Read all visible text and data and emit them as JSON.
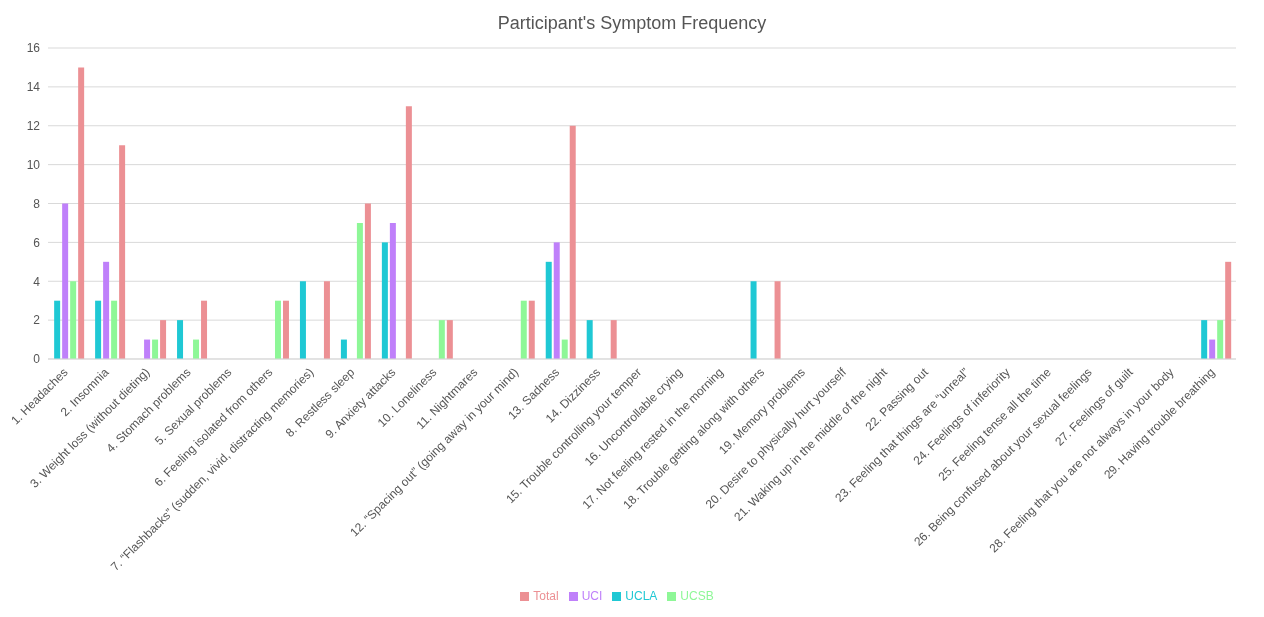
{
  "chart_data": {
    "type": "bar",
    "title": "Participant's Symptom Frequency",
    "categories": [
      "1. Headaches",
      "2. Insomnia",
      "3. Weight loss (without dieting)",
      "4. Stomach problems",
      "5. Sexual problems",
      "6. Feeling isolated from others",
      "7. “Flashbacks” (sudden, vivid, distracting memories)",
      "8. Restless sleep",
      "9. Anxiety attacks",
      "10. Loneliness",
      "11. Nightmares",
      "12. “Spacing out” (going away in your mind)",
      "13. Sadness",
      "14. Dizziness",
      "15. Trouble controlling your temper",
      "16. Uncontrollable crying",
      "17. Not feeling rested in the morning",
      "18. Trouble getting along with others",
      "19. Memory problems",
      "20. Desire to physically hurt yourself",
      "21. Waking up in the middle of the night",
      "22. Passing out",
      "23. Feeling that things are “unreal”",
      "24. Feelings of inferiority",
      "25. Feeling tense all the time",
      "26. Being confused about your sexual feelings",
      "27. Feelings of guilt",
      "28. Feeling that you are not always in your body",
      "29. Having trouble breathing"
    ],
    "series": [
      {
        "name": "UCLA",
        "color": "#1fc8d4",
        "values": [
          3,
          3,
          0,
          2,
          0,
          0,
          4,
          1,
          6,
          0,
          0,
          0,
          5,
          2,
          0,
          0,
          0,
          4,
          0,
          0,
          0,
          0,
          0,
          0,
          0,
          0,
          0,
          0,
          2
        ]
      },
      {
        "name": "UCI",
        "color": "#bf80fa",
        "values": [
          8,
          5,
          1,
          0,
          0,
          0,
          0,
          0,
          7,
          0,
          0,
          0,
          6,
          0,
          0,
          0,
          0,
          0,
          0,
          0,
          0,
          0,
          0,
          0,
          0,
          0,
          0,
          0,
          1
        ]
      },
      {
        "name": "UCSB",
        "color": "#8ef797",
        "values": [
          4,
          3,
          1,
          1,
          0,
          3,
          0,
          7,
          0,
          2,
          0,
          3,
          1,
          0,
          0,
          0,
          0,
          0,
          0,
          0,
          0,
          0,
          0,
          0,
          0,
          0,
          0,
          0,
          2
        ]
      },
      {
        "name": "Total",
        "color": "#ec9094",
        "values": [
          15,
          11,
          2,
          3,
          0,
          3,
          4,
          8,
          13,
          2,
          0,
          3,
          12,
          2,
          0,
          0,
          0,
          4,
          0,
          0,
          0,
          0,
          0,
          0,
          0,
          0,
          0,
          0,
          5
        ]
      }
    ],
    "ylim": [
      0,
      16
    ],
    "yticks": [
      0,
      2,
      4,
      6,
      8,
      10,
      12,
      14,
      16
    ],
    "grid": "y",
    "legend": "bottom"
  }
}
